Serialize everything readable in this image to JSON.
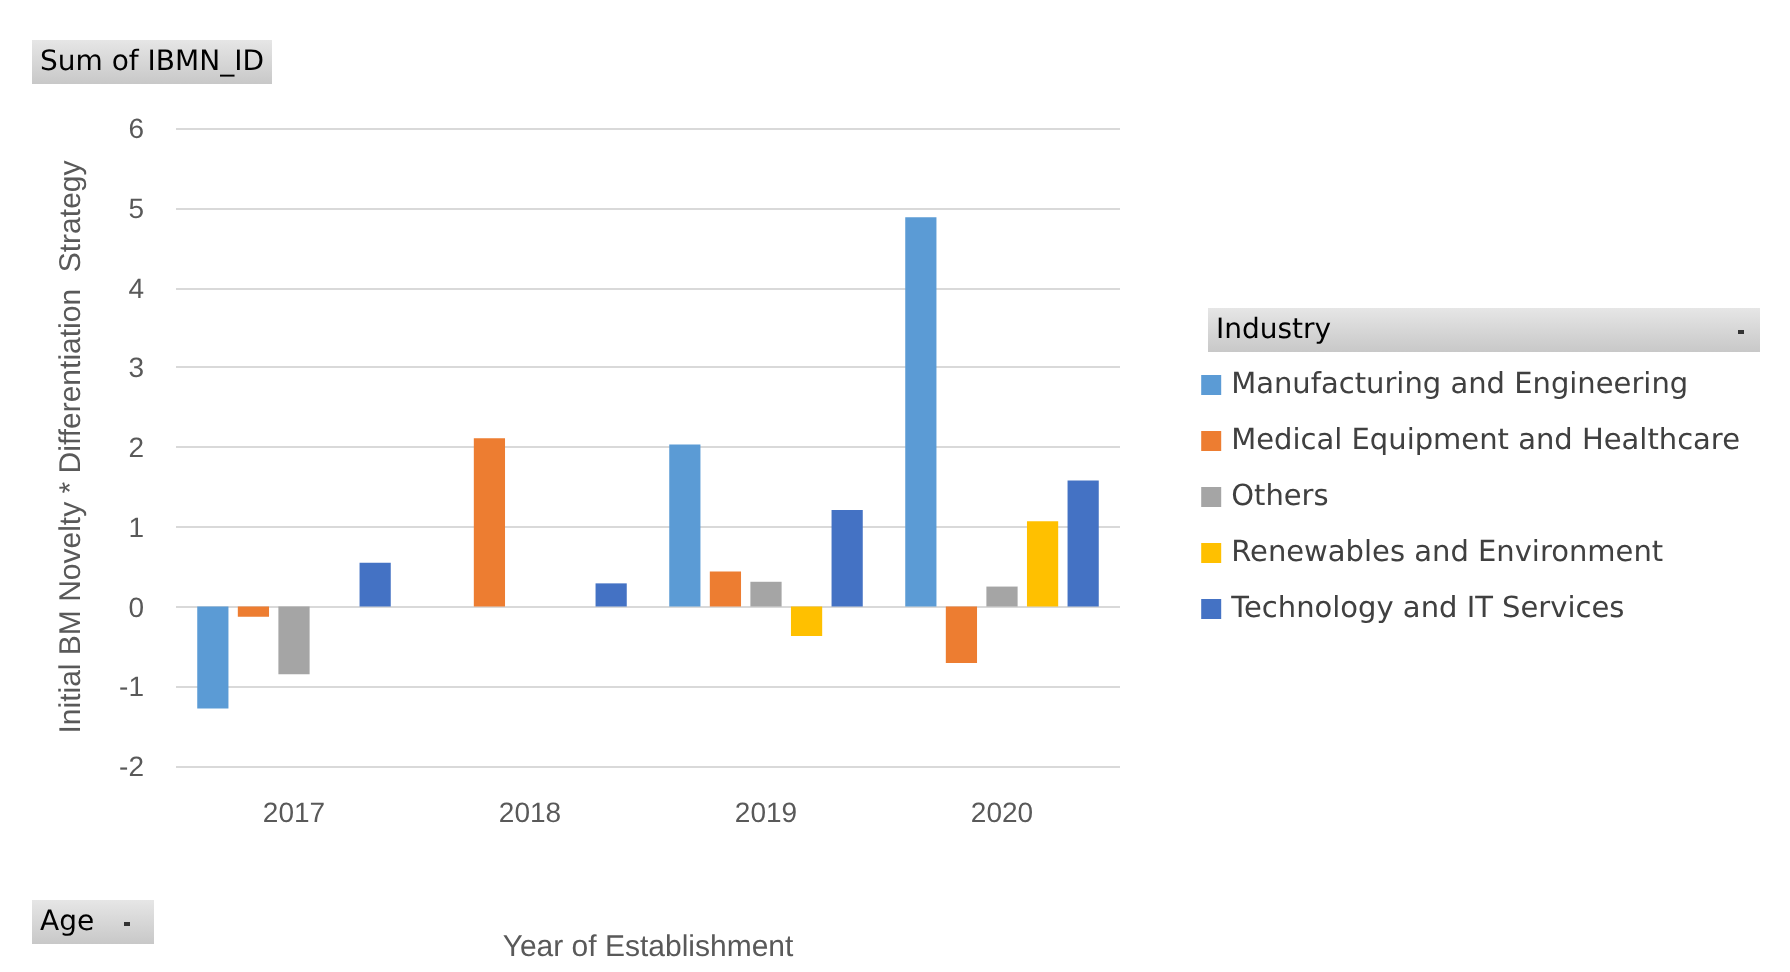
{
  "chart_data": {
    "type": "bar",
    "xlabel": "Year of Establishment",
    "ylabel": "Initial BM Novelty * Differentiation  Strategy",
    "legend_title": "Industry",
    "annotations": [
      "Sum of IBMN_ID",
      "Age"
    ],
    "categories": [
      "2017",
      "2018",
      "2019",
      "2020"
    ],
    "series": [
      {
        "name": "Manufacturing and Engineering",
        "color": "#5b9bd5",
        "values": [
          -1.28,
          null,
          2.03,
          4.88
        ]
      },
      {
        "name": "Medical Equipment and Healthcare",
        "color": "#ed7d31",
        "values": [
          -0.13,
          2.11,
          0.44,
          -0.71
        ]
      },
      {
        "name": "Others",
        "color": "#a5a5a5",
        "values": [
          -0.85,
          null,
          0.31,
          0.25
        ]
      },
      {
        "name": "Renewables and Environment",
        "color": "#ffc000",
        "values": [
          null,
          null,
          -0.37,
          1.07
        ]
      },
      {
        "name": "Technology and IT Services",
        "color": "#4472c4",
        "values": [
          0.55,
          0.29,
          1.21,
          1.58
        ]
      }
    ],
    "ylim": [
      -2,
      6
    ],
    "yticks": [
      -2,
      -1,
      0,
      1,
      2,
      3,
      4,
      5,
      6
    ],
    "grid": "y",
    "legend": "right"
  }
}
